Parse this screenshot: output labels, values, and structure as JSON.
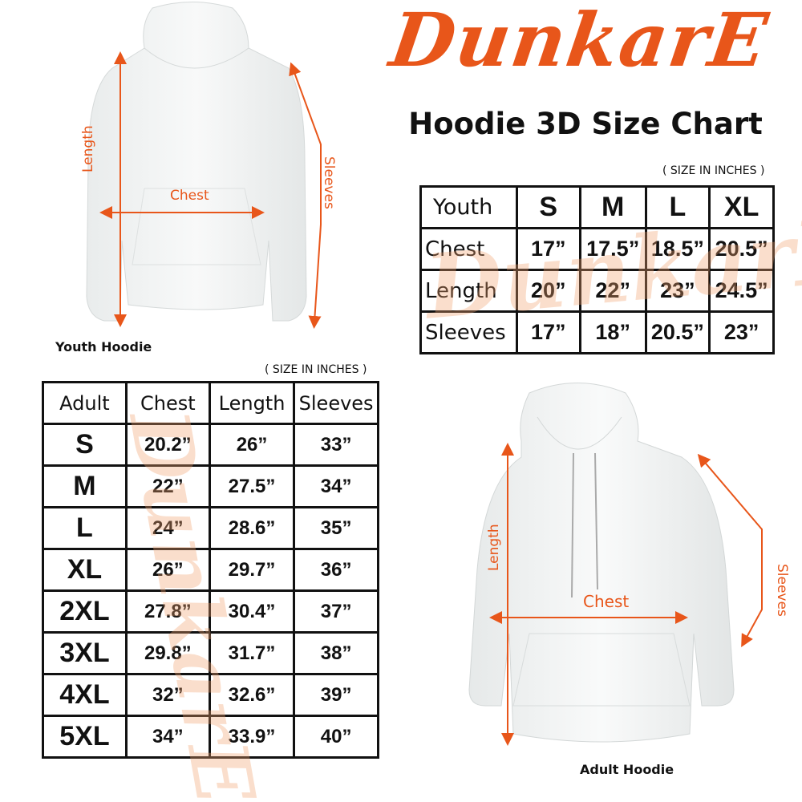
{
  "brand": {
    "logo_text": "DunkarE",
    "color": "#e8561a"
  },
  "title": "Hoodie 3D Size Chart",
  "youth": {
    "note": "( SIZE IN INCHES )",
    "header": [
      "Youth",
      "S",
      "M",
      "L",
      "XL"
    ],
    "rows": [
      [
        "Chest",
        "17”",
        "17.5”",
        "18.5”",
        "20.5”"
      ],
      [
        "Length",
        "20”",
        "22”",
        "23”",
        "24.5”"
      ],
      [
        "Sleeves",
        "17”",
        "18”",
        "20.5”",
        "23”"
      ]
    ],
    "image_caption": "Youth Hoodie",
    "labels": {
      "length": "Length",
      "chest": "Chest",
      "sleeves": "Sleeves"
    }
  },
  "adult": {
    "note": "( SIZE IN INCHES )",
    "header": [
      "Adult",
      "Chest",
      "Length",
      "Sleeves"
    ],
    "rows": [
      [
        "S",
        "20.2”",
        "26”",
        "33”"
      ],
      [
        "M",
        "22”",
        "27.5”",
        "34”"
      ],
      [
        "L",
        "24”",
        "28.6”",
        "35”"
      ],
      [
        "XL",
        "26”",
        "29.7”",
        "36”"
      ],
      [
        "2XL",
        "27.8”",
        "30.4”",
        "37”"
      ],
      [
        "3XL",
        "29.8”",
        "31.7”",
        "38”"
      ],
      [
        "4XL",
        "32”",
        "32.6”",
        "39”"
      ],
      [
        "5XL",
        "34”",
        "33.9”",
        "40”"
      ]
    ],
    "image_caption": "Adult Hoodie",
    "labels": {
      "length": "Length",
      "chest": "Chest",
      "sleeves": "Sleeves"
    }
  }
}
